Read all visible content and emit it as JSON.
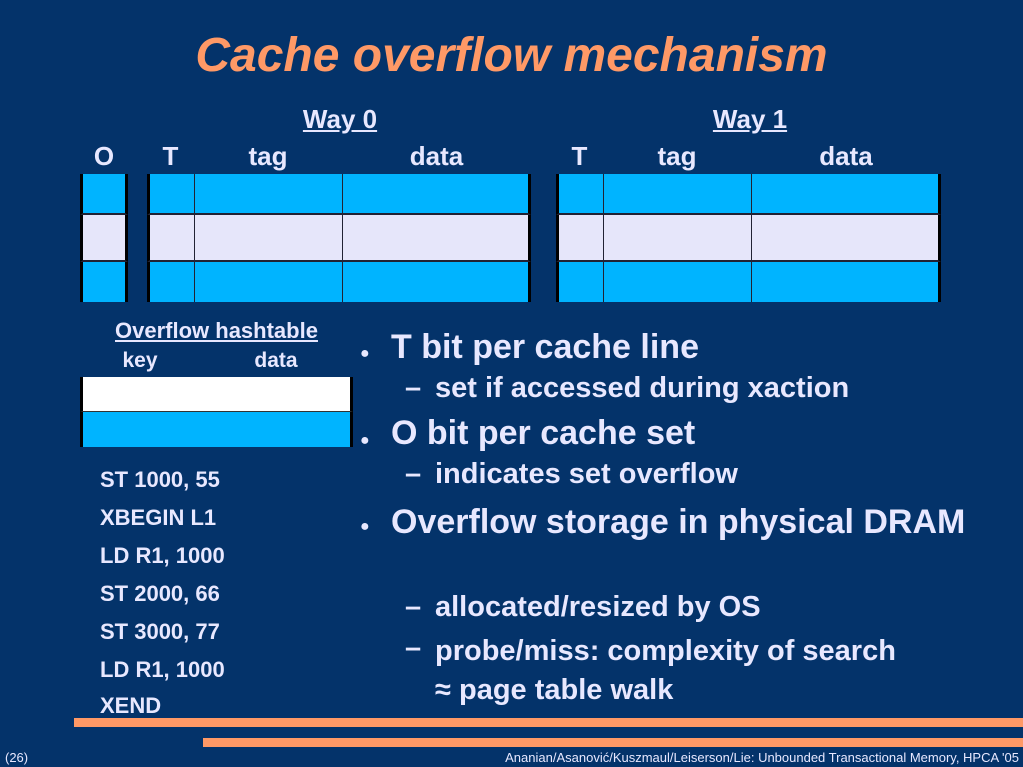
{
  "title": "Cache overflow mechanism",
  "cache": {
    "way0": "Way 0",
    "way1": "Way 1",
    "col_o": "O",
    "col_t": "T",
    "col_tag": "tag",
    "col_data": "data",
    "rows": [
      "cyan",
      "lavender",
      "cyan"
    ]
  },
  "hashtable": {
    "title": "Overflow hashtable",
    "col_key": "key",
    "col_data": "data"
  },
  "code": [
    "ST 1000, 55",
    "XBEGIN L1",
    "LD R1, 1000",
    "ST 2000, 66",
    "ST 3000, 77",
    "LD R1, 1000",
    "XEND"
  ],
  "bullets": [
    {
      "text": "T bit per cache line",
      "sub": [
        "set if accessed during xaction"
      ]
    },
    {
      "text": "O bit per cache set",
      "sub": [
        "indicates set overflow"
      ]
    },
    {
      "text": "Overflow storage in physical DRAM",
      "sub": [
        "allocated/resized by OS",
        "probe/miss: complexity of search ≈ page table walk"
      ]
    }
  ],
  "footer": {
    "page": "(26)",
    "citation": "Ananian/Asanović/Kuszmaul/Leiserson/Lie: Unbounded Transactional Memory, HPCA '05"
  },
  "colors": {
    "background": "#04336a",
    "accent": "#ff9966",
    "cyan": "#00b4ff",
    "lavender": "#e6e6fa"
  }
}
